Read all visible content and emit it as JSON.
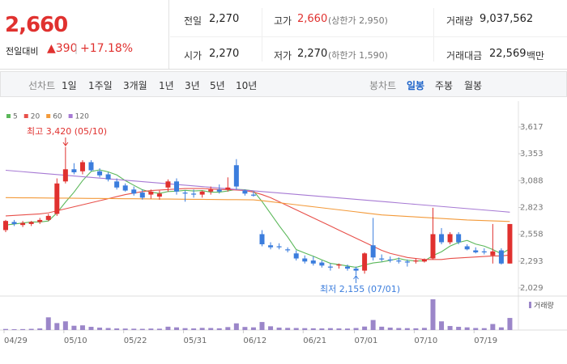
{
  "header": {
    "price": "2,660",
    "change_label": "전일대비",
    "change": "▲390",
    "change_rate": "+17.18%",
    "stats": [
      {
        "label": "전일",
        "value": "2,270"
      },
      {
        "label": "고가",
        "value": "2,660",
        "note": "(상한가 2,950)"
      },
      {
        "label": "거래량",
        "value": "9,037,562"
      },
      {
        "label": "시가",
        "value": "2,270"
      },
      {
        "label": "저가",
        "value": "2,270",
        "note": "(하한가 1,590)"
      },
      {
        "label": "거래대금",
        "value": "22,569",
        "unit": "백만"
      }
    ]
  },
  "toolbar": {
    "line_chart": "선차트",
    "line_periods": [
      "1일",
      "1주일",
      "3개월",
      "1년",
      "3년",
      "5년",
      "10년"
    ],
    "candle_chart": "봉차트",
    "candle_periods": [
      "일봉",
      "주봉",
      "월봉"
    ]
  },
  "chart_data": {
    "type": "candlestick",
    "categories": [
      "04/29",
      null,
      null,
      null,
      null,
      null,
      null,
      "05/10",
      null,
      null,
      null,
      null,
      null,
      null,
      "05/22",
      null,
      null,
      null,
      null,
      null,
      null,
      "05/31",
      null,
      null,
      null,
      null,
      null,
      null,
      "06/12",
      null,
      null,
      null,
      null,
      null,
      null,
      "06/21",
      null,
      null,
      null,
      null,
      null,
      "07/01",
      null,
      null,
      null,
      null,
      null,
      null,
      "07/10",
      null,
      null,
      null,
      null,
      null,
      null,
      "07/19",
      null,
      null,
      null,
      null
    ],
    "ohlc": {
      "open": [
        2600,
        2680,
        2650,
        2660,
        2680,
        2700,
        2760,
        3080,
        3200,
        3180,
        3270,
        3180,
        3150,
        3080,
        3040,
        3000,
        2970,
        2950,
        2930,
        3020,
        3080,
        2970,
        2960,
        2950,
        2980,
        3000,
        3000,
        3240,
        2990,
        2950,
        2560,
        2450,
        2440,
        2410,
        2370,
        2320,
        2300,
        2280,
        2240,
        2250,
        2240,
        2220,
        2200,
        2450,
        2320,
        2310,
        2300,
        2290,
        2290,
        2290,
        2320,
        2560,
        2480,
        2560,
        2440,
        2400,
        2390,
        2350,
        2400,
        2270
      ],
      "high": [
        2700,
        2700,
        2690,
        2690,
        2720,
        2760,
        3110,
        3420,
        3260,
        3290,
        3290,
        3210,
        3170,
        3110,
        3060,
        3030,
        3000,
        3000,
        2990,
        3100,
        3110,
        2990,
        3000,
        2990,
        3030,
        3050,
        3120,
        3300,
        3000,
        2980,
        2600,
        2480,
        2470,
        2430,
        2400,
        2350,
        2340,
        2300,
        2270,
        2270,
        2260,
        2240,
        2380,
        2720,
        2360,
        2340,
        2330,
        2310,
        2320,
        2320,
        2820,
        2620,
        2580,
        2580,
        2460,
        2430,
        2420,
        2660,
        2420,
        2660
      ],
      "low": [
        2580,
        2640,
        2630,
        2640,
        2660,
        2690,
        2740,
        3060,
        3150,
        3150,
        3180,
        3120,
        3080,
        3000,
        2980,
        2940,
        2900,
        2910,
        2900,
        2980,
        2950,
        2880,
        2920,
        2920,
        2950,
        2960,
        2980,
        3000,
        2940,
        2930,
        2440,
        2410,
        2410,
        2380,
        2300,
        2270,
        2250,
        2230,
        2200,
        2220,
        2200,
        2155,
        2170,
        2300,
        2290,
        2280,
        2270,
        2240,
        2270,
        2280,
        2310,
        2460,
        2460,
        2460,
        2400,
        2370,
        2360,
        2270,
        2260,
        2270
      ],
      "close": [
        2690,
        2660,
        2670,
        2680,
        2700,
        2740,
        3060,
        3200,
        3170,
        3270,
        3190,
        3140,
        3100,
        3020,
        2990,
        2960,
        2920,
        2980,
        2960,
        3080,
        2980,
        2960,
        2950,
        2980,
        3000,
        2980,
        3020,
        3030,
        2960,
        2940,
        2460,
        2430,
        2430,
        2400,
        2320,
        2290,
        2270,
        2250,
        2230,
        2260,
        2220,
        2200,
        2370,
        2330,
        2310,
        2300,
        2290,
        2280,
        2300,
        2310,
        2560,
        2480,
        2560,
        2480,
        2410,
        2380,
        2380,
        2390,
        2270,
        2660
      ]
    },
    "up_color": "#e0312f",
    "down_color": "#3b7ddd",
    "ylim": [
      2029,
      3617
    ],
    "yticks": [
      {
        "value": 3617,
        "label": "3,617"
      },
      {
        "value": 3353,
        "label": "3,353"
      },
      {
        "value": 3088,
        "label": "3,088"
      },
      {
        "value": 2823,
        "label": "2,823"
      },
      {
        "value": 2558,
        "label": "2,558"
      },
      {
        "value": 2293,
        "label": "2,293"
      },
      {
        "value": 2029,
        "label": "2,029"
      }
    ],
    "moving_averages": [
      {
        "name": "5",
        "color": "#5bb85a",
        "values": [
          2650,
          2660,
          2670,
          2680,
          2680,
          2690,
          2770,
          2876,
          2974,
          3088,
          3178,
          3194,
          3174,
          3144,
          3088,
          3042,
          2998,
          2974,
          2962,
          2980,
          2984,
          2992,
          2986,
          2990,
          2974,
          2974,
          2986,
          3002,
          2998,
          2986,
          2882,
          2764,
          2644,
          2532,
          2408,
          2374,
          2342,
          2306,
          2272,
          2260,
          2246,
          2232,
          2256,
          2276,
          2286,
          2302,
          2320,
          2302,
          2296,
          2296,
          2348,
          2386,
          2442,
          2478,
          2498,
          2462,
          2442,
          2408,
          2366,
          2416
        ]
      },
      {
        "name": "20",
        "color": "#e8504a",
        "values": [
          2740,
          2745,
          2750,
          2755,
          2760,
          2770,
          2790,
          2810,
          2830,
          2850,
          2870,
          2890,
          2910,
          2930,
          2950,
          2965,
          2980,
          2990,
          2995,
          3000,
          3005,
          3010,
          3010,
          3010,
          3005,
          3000,
          3000,
          2995,
          2990,
          2975,
          2950,
          2920,
          2880,
          2840,
          2800,
          2760,
          2720,
          2680,
          2640,
          2600,
          2560,
          2520,
          2480,
          2440,
          2400,
          2370,
          2350,
          2330,
          2320,
          2310,
          2310,
          2310,
          2320,
          2325,
          2330,
          2335,
          2340,
          2345,
          2345,
          2355
        ]
      },
      {
        "name": "60",
        "color": "#f39a3a",
        "values": [
          2920,
          2919,
          2918,
          2918,
          2917,
          2916,
          2915,
          2915,
          2914,
          2913,
          2912,
          2912,
          2911,
          2910,
          2909,
          2909,
          2908,
          2907,
          2906,
          2906,
          2905,
          2904,
          2903,
          2903,
          2902,
          2901,
          2900,
          2900,
          2899,
          2898,
          2890,
          2880,
          2870,
          2860,
          2850,
          2840,
          2830,
          2820,
          2810,
          2800,
          2790,
          2780,
          2770,
          2760,
          2750,
          2745,
          2740,
          2735,
          2730,
          2725,
          2720,
          2715,
          2710,
          2705,
          2700,
          2697,
          2694,
          2691,
          2688,
          2685
        ]
      },
      {
        "name": "120",
        "color": "#a77ad4",
        "values": [
          3190,
          3183,
          3176,
          3169,
          3162,
          3155,
          3148,
          3141,
          3134,
          3127,
          3120,
          3113,
          3106,
          3099,
          3092,
          3085,
          3078,
          3071,
          3064,
          3057,
          3050,
          3043,
          3036,
          3029,
          3022,
          3015,
          3008,
          3001,
          2994,
          2987,
          2980,
          2973,
          2966,
          2959,
          2952,
          2945,
          2938,
          2931,
          2924,
          2917,
          2910,
          2903,
          2896,
          2889,
          2882,
          2875,
          2868,
          2861,
          2854,
          2847,
          2840,
          2833,
          2826,
          2819,
          2812,
          2805,
          2798,
          2791,
          2784,
          2777
        ]
      }
    ],
    "volume": {
      "name": "거래량",
      "color": "#9b86c9",
      "values": [
        800000,
        600000,
        700000,
        900000,
        1200000,
        9500000,
        5200000,
        6500000,
        3200000,
        3500000,
        2400000,
        1800000,
        1500000,
        1200000,
        1100000,
        1000000,
        900000,
        1100000,
        1000000,
        2500000,
        2000000,
        1400000,
        1200000,
        1600000,
        1500000,
        1300000,
        2200000,
        5000000,
        2300000,
        2000000,
        6000000,
        2800000,
        1800000,
        1600000,
        1500000,
        1400000,
        1300000,
        1200000,
        1400000,
        1200000,
        1100000,
        1500000,
        2600000,
        7500000,
        2500000,
        1800000,
        1500000,
        1400000,
        1300000,
        1600000,
        23000000,
        6500000,
        3000000,
        2400000,
        2000000,
        1500000,
        1400000,
        4500000,
        2000000,
        9037562
      ]
    },
    "annotations": [
      "최고 3,420 (05/10)",
      "최저 2,155 (07/01)"
    ]
  }
}
